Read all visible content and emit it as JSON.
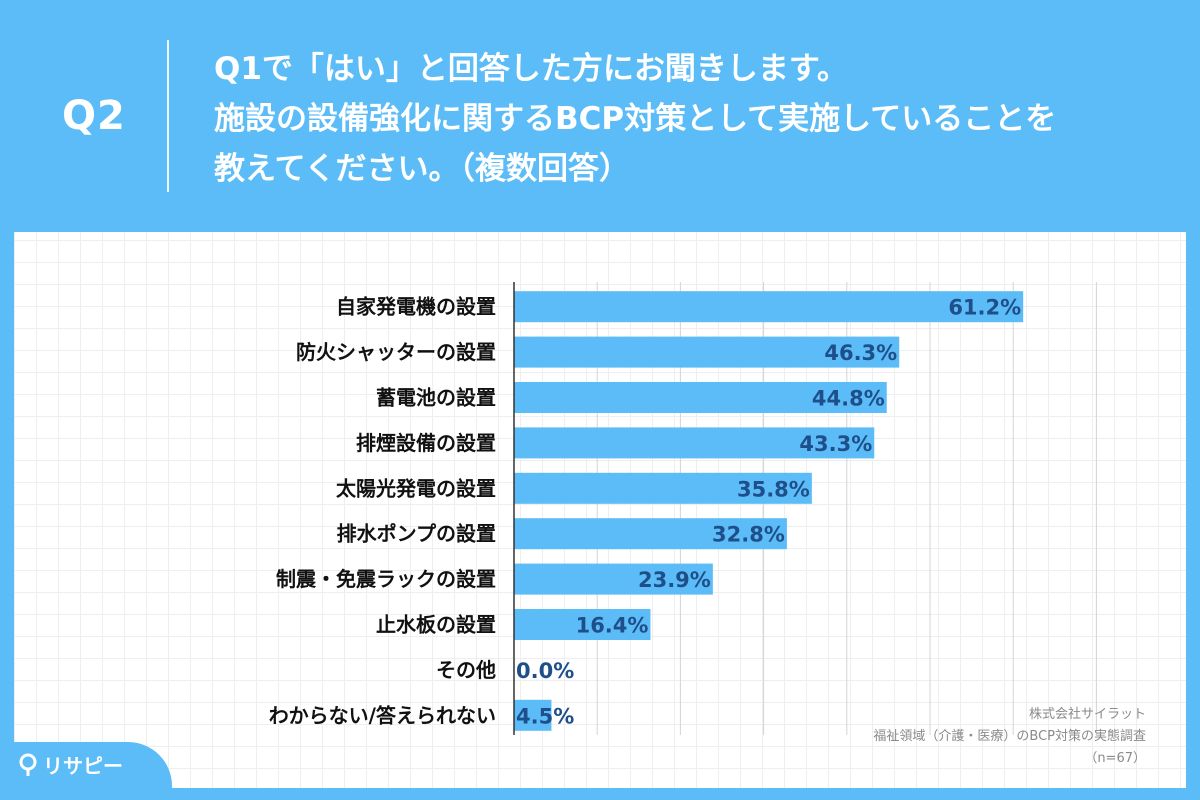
{
  "header": {
    "q_label": "Q2",
    "question_lines": [
      "Q1で「はい」と回答した方にお聞きします。",
      "施設の設備強化に関するBCP対策として実施していることを",
      "教えてください。（複数回答）"
    ]
  },
  "chart_data": {
    "type": "bar",
    "orientation": "horizontal",
    "categories": [
      "自家発電機の設置",
      "防火シャッターの設置",
      "蓄電池の設置",
      "排煙設備の設置",
      "太陽光発電の設置",
      "排水ポンプの設置",
      "制震・免震ラックの設置",
      "止水板の設置",
      "その他",
      "わからない/答えられない"
    ],
    "values": [
      61.2,
      46.3,
      44.8,
      43.3,
      35.8,
      32.8,
      23.9,
      16.4,
      0.0,
      4.5
    ],
    "value_labels": [
      "61.2%",
      "46.3%",
      "44.8%",
      "43.3%",
      "35.8%",
      "32.8%",
      "23.9%",
      "16.4%",
      "0.0%",
      "4.5%"
    ],
    "xlim": [
      0,
      70
    ],
    "grid": true,
    "bar_color": "#5bbcf7"
  },
  "source": {
    "company": "株式会社サイラット",
    "survey": "福祉領域（介護・医療）のBCP対策の実態調査",
    "n": "（n=67）"
  },
  "logo": {
    "text": "リサピー",
    "icon": "pin-icon"
  }
}
